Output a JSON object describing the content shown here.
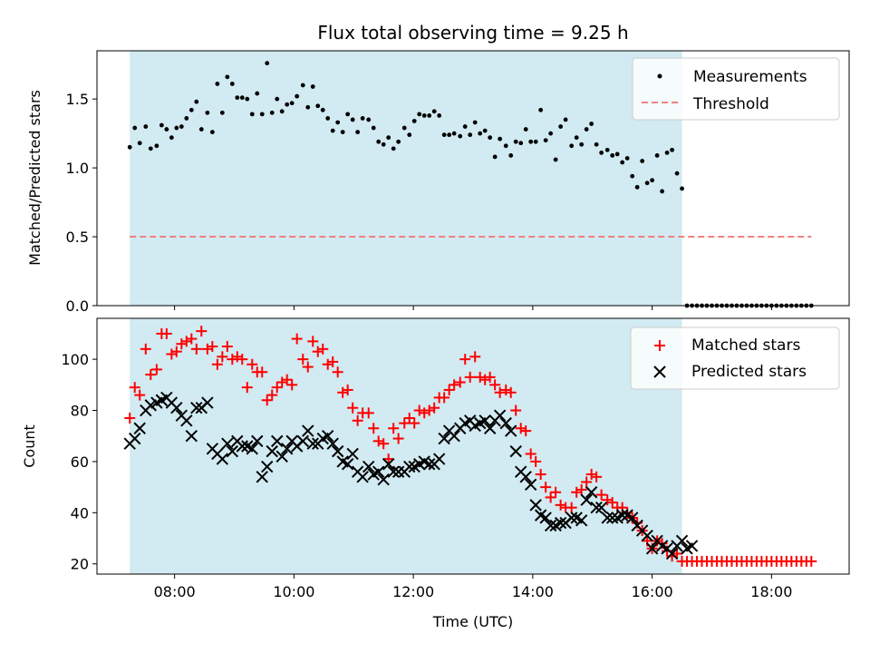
{
  "title": "Flux total observing time = 9.25 h",
  "chart_data": [
    {
      "type": "scatter",
      "ylabel": "Matched/Predicted stars",
      "xlim": [
        "06:42",
        "19:18"
      ],
      "ylim": [
        0,
        1.85
      ],
      "yticks": [
        0.0,
        0.5,
        1.0,
        1.5
      ],
      "ytick_labels": [
        "0.0",
        "0.5",
        "1.0",
        "1.5"
      ],
      "xticks": [
        "08:00",
        "10:00",
        "12:00",
        "14:00",
        "16:00",
        "18:00"
      ],
      "shaded_interval": {
        "start": "07:15",
        "end": "16:30",
        "color": "#add8e6"
      },
      "legend": {
        "position": "top-right",
        "entries": [
          "Measurements",
          "Threshold"
        ]
      },
      "series": [
        {
          "name": "Measurements",
          "style": "dots",
          "color": "#000000",
          "x": [
            "07:15",
            "07:20",
            "07:25",
            "07:31",
            "07:36",
            "07:42",
            "07:47",
            "07:52",
            "07:57",
            "08:02",
            "08:07",
            "08:12",
            "08:17",
            "08:22",
            "08:27",
            "08:33",
            "08:38",
            "08:43",
            "08:48",
            "08:53",
            "08:58",
            "09:03",
            "09:08",
            "09:13",
            "09:18",
            "09:23",
            "09:28",
            "09:33",
            "09:38",
            "09:43",
            "09:48",
            "09:53",
            "09:58",
            "10:03",
            "10:09",
            "10:14",
            "10:19",
            "10:24",
            "10:29",
            "10:34",
            "10:39",
            "10:44",
            "10:49",
            "10:54",
            "10:59",
            "11:04",
            "11:09",
            "11:15",
            "11:20",
            "11:25",
            "11:30",
            "11:35",
            "11:40",
            "11:45",
            "11:51",
            "11:56",
            "12:01",
            "12:06",
            "12:11",
            "12:16",
            "12:21",
            "12:26",
            "12:31",
            "12:36",
            "12:41",
            "12:47",
            "12:52",
            "12:57",
            "13:02",
            "13:07",
            "13:12",
            "13:17",
            "13:22",
            "13:27",
            "13:33",
            "13:38",
            "13:43",
            "13:48",
            "13:53",
            "13:58",
            "14:03",
            "14:08",
            "14:13",
            "14:18",
            "14:23",
            "14:28",
            "14:33",
            "14:39",
            "14:44",
            "14:49",
            "14:54",
            "14:59",
            "15:04",
            "15:09",
            "15:15",
            "15:20",
            "15:25",
            "15:30",
            "15:35",
            "15:40",
            "15:45",
            "15:50",
            "15:55",
            "16:00",
            "16:05",
            "16:10",
            "16:15",
            "16:20",
            "16:25",
            "16:30",
            "16:35",
            "16:40",
            "16:45",
            "16:50",
            "16:55",
            "17:00",
            "17:05",
            "17:10",
            "17:15",
            "17:20",
            "17:25",
            "17:30",
            "17:35",
            "17:40",
            "17:45",
            "17:50",
            "17:55",
            "18:00",
            "18:05",
            "18:10",
            "18:15",
            "18:20",
            "18:25",
            "18:30",
            "18:35",
            "18:40"
          ],
          "y": [
            1.15,
            1.29,
            1.18,
            1.3,
            1.14,
            1.16,
            1.31,
            1.28,
            1.22,
            1.29,
            1.3,
            1.36,
            1.42,
            1.48,
            1.28,
            1.4,
            1.26,
            1.61,
            1.4,
            1.66,
            1.61,
            1.51,
            1.51,
            1.5,
            1.39,
            1.54,
            1.39,
            1.76,
            1.4,
            1.5,
            1.41,
            1.46,
            1.47,
            1.52,
            1.6,
            1.44,
            1.59,
            1.45,
            1.42,
            1.36,
            1.27,
            1.33,
            1.26,
            1.39,
            1.35,
            1.26,
            1.36,
            1.35,
            1.29,
            1.19,
            1.17,
            1.22,
            1.14,
            1.19,
            1.29,
            1.24,
            1.34,
            1.39,
            1.38,
            1.38,
            1.41,
            1.38,
            1.24,
            1.24,
            1.25,
            1.23,
            1.3,
            1.24,
            1.33,
            1.25,
            1.27,
            1.22,
            1.08,
            1.21,
            1.16,
            1.09,
            1.19,
            1.18,
            1.28,
            1.19,
            1.19,
            1.42,
            1.2,
            1.25,
            1.06,
            1.3,
            1.35,
            1.16,
            1.22,
            1.17,
            1.28,
            1.32,
            1.17,
            1.11,
            1.13,
            1.09,
            1.1,
            1.04,
            1.07,
            0.94,
            0.86,
            1.05,
            0.89,
            0.91,
            1.09,
            0.83,
            1.11,
            1.13,
            0.96,
            0.85,
            0,
            0,
            0,
            0,
            0,
            0,
            0,
            0,
            0,
            0,
            0,
            0,
            0,
            0,
            0,
            0,
            0,
            0,
            0,
            0,
            0,
            0,
            0,
            0,
            0,
            0
          ]
        },
        {
          "name": "Threshold",
          "style": "dashed-line",
          "color": "#f08080",
          "x": [
            "07:15",
            "18:40"
          ],
          "y": [
            0.5,
            0.5
          ]
        }
      ]
    },
    {
      "type": "scatter",
      "xlabel": "Time (UTC)",
      "ylabel": "Count",
      "xlim": [
        "06:42",
        "19:18"
      ],
      "ylim": [
        16,
        116
      ],
      "yticks": [
        20,
        40,
        60,
        80,
        100
      ],
      "ytick_labels": [
        "20",
        "40",
        "60",
        "80",
        "100"
      ],
      "xticks": [
        "08:00",
        "10:00",
        "12:00",
        "14:00",
        "16:00",
        "18:00"
      ],
      "shaded_interval": {
        "start": "07:15",
        "end": "16:30",
        "color": "#add8e6"
      },
      "legend": {
        "position": "top-right",
        "entries": [
          "Matched stars",
          "Predicted stars"
        ]
      },
      "x": [
        "07:15",
        "07:20",
        "07:25",
        "07:31",
        "07:36",
        "07:42",
        "07:47",
        "07:52",
        "07:57",
        "08:02",
        "08:07",
        "08:12",
        "08:17",
        "08:22",
        "08:27",
        "08:33",
        "08:38",
        "08:43",
        "08:48",
        "08:53",
        "08:58",
        "09:03",
        "09:08",
        "09:13",
        "09:18",
        "09:23",
        "09:28",
        "09:33",
        "09:38",
        "09:43",
        "09:48",
        "09:53",
        "09:58",
        "10:03",
        "10:09",
        "10:14",
        "10:19",
        "10:24",
        "10:29",
        "10:34",
        "10:39",
        "10:44",
        "10:49",
        "10:54",
        "10:59",
        "11:04",
        "11:09",
        "11:15",
        "11:20",
        "11:25",
        "11:30",
        "11:35",
        "11:40",
        "11:45",
        "11:51",
        "11:56",
        "12:01",
        "12:06",
        "12:11",
        "12:16",
        "12:21",
        "12:26",
        "12:31",
        "12:36",
        "12:41",
        "12:47",
        "12:52",
        "12:57",
        "13:02",
        "13:07",
        "13:12",
        "13:17",
        "13:22",
        "13:27",
        "13:33",
        "13:38",
        "13:43",
        "13:48",
        "13:53",
        "13:58",
        "14:03",
        "14:08",
        "14:13",
        "14:18",
        "14:23",
        "14:28",
        "14:33",
        "14:39",
        "14:44",
        "14:49",
        "14:54",
        "14:59",
        "15:04",
        "15:09",
        "15:15",
        "15:20",
        "15:25",
        "15:30",
        "15:35",
        "15:40",
        "15:45",
        "15:50",
        "15:55",
        "16:00",
        "16:05",
        "16:10",
        "16:15",
        "16:20",
        "16:25",
        "16:30",
        "16:35",
        "16:40",
        "16:45",
        "16:50",
        "16:55",
        "17:00",
        "17:05",
        "17:10",
        "17:15",
        "17:20",
        "17:25",
        "17:30",
        "17:35",
        "17:40",
        "17:45",
        "17:50",
        "17:55",
        "18:00",
        "18:05",
        "18:10",
        "18:15",
        "18:20",
        "18:25",
        "18:30",
        "18:35",
        "18:40"
      ],
      "series": [
        {
          "name": "Matched stars",
          "marker": "plus",
          "color": "#ff0000",
          "values": [
            77,
            89,
            86,
            104,
            94,
            96,
            110,
            110,
            102,
            103,
            106,
            107,
            108,
            104,
            111,
            104,
            105,
            98,
            101,
            105,
            100,
            101,
            100,
            89,
            98,
            95,
            95,
            84,
            86,
            89,
            91,
            92,
            90,
            108,
            100,
            97,
            107,
            103,
            104,
            98,
            99,
            95,
            87,
            88,
            81,
            76,
            79,
            79,
            73,
            68,
            67,
            61,
            73,
            69,
            75,
            77,
            75,
            80,
            79,
            80,
            81,
            85,
            85,
            88,
            90,
            91,
            100,
            93,
            101,
            93,
            92,
            93,
            90,
            87,
            88,
            87,
            80,
            73,
            72,
            63,
            60,
            55,
            50,
            46,
            48,
            43,
            42,
            42,
            48,
            49,
            52,
            55,
            54,
            47,
            45,
            44,
            42,
            42,
            40,
            38,
            36,
            33,
            29,
            26,
            29,
            28,
            25,
            23,
            24,
            21,
            21,
            21,
            21,
            21,
            21,
            21,
            21,
            21,
            21,
            21,
            21,
            21,
            21,
            21,
            21,
            21,
            21,
            21,
            21,
            21,
            21,
            21,
            21,
            21,
            21,
            21
          ]
        },
        {
          "name": "Predicted stars",
          "marker": "x",
          "color": "#000000",
          "values": [
            67,
            69,
            73,
            80,
            82,
            83,
            84,
            85,
            83,
            81,
            78,
            76,
            70,
            81,
            81,
            83,
            65,
            63,
            61,
            67,
            64,
            68,
            66,
            66,
            65,
            68,
            54,
            58,
            64,
            68,
            62,
            65,
            68,
            66,
            68,
            72,
            67,
            67,
            69,
            70,
            67,
            64,
            60,
            59,
            63,
            56,
            54,
            58,
            55,
            56,
            53,
            59,
            56,
            56,
            56,
            58,
            58,
            59,
            60,
            59,
            59,
            61,
            69,
            72,
            70,
            73,
            75,
            76,
            74,
            75,
            76,
            73,
            76,
            78,
            75,
            72,
            64,
            56,
            54,
            51,
            43,
            39,
            38,
            35,
            35,
            36,
            36,
            38,
            38,
            37,
            45,
            48,
            42,
            42,
            38,
            38,
            38,
            39,
            39,
            38,
            35,
            33,
            31,
            26,
            29,
            27,
            26,
            24,
            27,
            29,
            26,
            27
          ]
        }
      ]
    }
  ]
}
